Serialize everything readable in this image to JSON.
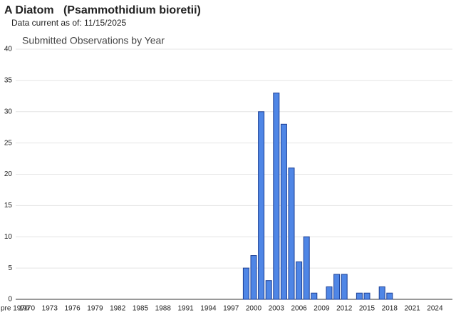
{
  "chart_data": {
    "type": "bar",
    "title": "A Diatom   (Psammothidium bioretii)",
    "subtitle": "Data current as of: 11/15/2025",
    "chart_title": "Submitted Observations by Year",
    "categories": [
      "pre 1970",
      "1970",
      null,
      null,
      "1973",
      null,
      null,
      "1976",
      null,
      null,
      "1979",
      null,
      null,
      "1982",
      null,
      null,
      "1985",
      null,
      null,
      "1988",
      null,
      null,
      "1991",
      null,
      null,
      "1994",
      null,
      null,
      "1997",
      null,
      null,
      "2000",
      null,
      null,
      "2003",
      null,
      null,
      "2006",
      null,
      null,
      "2009",
      null,
      null,
      "2012",
      null,
      null,
      "2015",
      null,
      null,
      "2018",
      null,
      null,
      "2021",
      null,
      null,
      "2024",
      null
    ],
    "values": [
      0,
      0,
      0,
      0,
      0,
      0,
      0,
      0,
      0,
      0,
      0,
      0,
      0,
      0,
      0,
      0,
      0,
      0,
      0,
      0,
      0,
      0,
      0,
      0,
      0,
      0,
      0,
      0,
      0,
      0,
      5,
      7,
      30,
      3,
      33,
      28,
      21,
      6,
      10,
      1,
      0,
      2,
      4,
      4,
      0,
      1,
      1,
      0,
      2,
      1,
      0,
      0,
      0,
      0,
      0,
      0,
      0
    ],
    "color": "#4f86e6",
    "ylim": [
      0,
      40
    ],
    "yticks": [
      0,
      5,
      10,
      15,
      20,
      25,
      30,
      35,
      40
    ],
    "grid": true
  }
}
